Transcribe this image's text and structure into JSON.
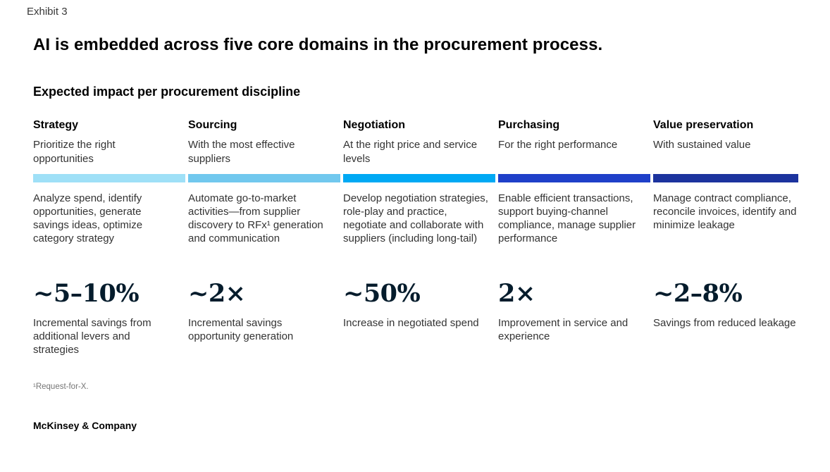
{
  "exhibit_label": "Exhibit 3",
  "title": "AI is embedded across five core domains in the procurement process.",
  "section_heading": "Expected impact per procurement discipline",
  "columns": [
    {
      "header": "Strategy",
      "subtitle": "Prioritize the right opportunities",
      "bar_color": "#9fe0f7",
      "description": "Analyze spend, identify opportunities, generate savings ideas, optimize category strategy",
      "stat": "~5–10%",
      "stat_label": "Incremental savings from additional levers and strategies"
    },
    {
      "header": "Sourcing",
      "subtitle": "With the most effective suppliers",
      "bar_color": "#71c8ee",
      "description": "Automate go-to-market activities—from supplier discovery to RFx¹ generation and communication",
      "stat": "~2×",
      "stat_label": "Incremental savings opportunity generation"
    },
    {
      "header": "Negotiation",
      "subtitle": "At the right price and service levels",
      "bar_color": "#00a9f4",
      "description": "Develop negotiation strategies, role-play and practice, negotiate and collaborate with suppliers (including long-tail)",
      "stat": "~50%",
      "stat_label": "Increase in negotiated spend"
    },
    {
      "header": "Purchasing",
      "subtitle": "For the right performance",
      "bar_color": "#1f40c9",
      "description": "Enable efficient transactions, support buying-channel compliance, manage supplier performance",
      "stat": "2×",
      "stat_label": "Improvement in service and experience"
    },
    {
      "header": "Value preservation",
      "subtitle": "With sustained value",
      "bar_color": "#1c339e",
      "description": "Manage contract compliance, reconcile invoices, identify and minimize leakage",
      "stat": "~2–8%",
      "stat_label": "Savings from reduced leakage"
    }
  ],
  "footnote": "¹Request-for-X.",
  "footer": "McKinsey & Company",
  "colors": {
    "stat_text": "#051c2c",
    "body_text": "#333333",
    "background": "#ffffff"
  }
}
